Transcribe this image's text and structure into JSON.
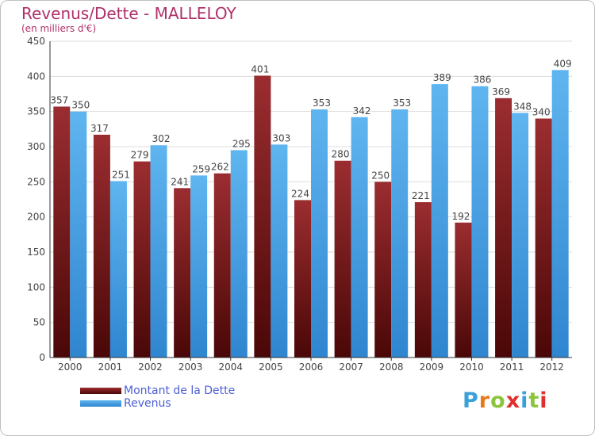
{
  "title": "Revenus/Dette - MALLELOY",
  "subtitle": "(en milliers d'€)",
  "logo_text": "Proxiti",
  "chart_data": {
    "type": "bar",
    "categories": [
      "2000",
      "2001",
      "2002",
      "2003",
      "2004",
      "2005",
      "2006",
      "2007",
      "2008",
      "2009",
      "2010",
      "2011",
      "2012"
    ],
    "series": [
      {
        "name": "Montant de la Dette",
        "color": "#6e1a1d",
        "values": [
          357,
          317,
          279,
          241,
          262,
          401,
          224,
          280,
          250,
          221,
          192,
          369,
          340
        ]
      },
      {
        "name": "Revenus",
        "color": "#3a9ae0",
        "values": [
          350,
          251,
          302,
          259,
          295,
          303,
          353,
          342,
          353,
          389,
          386,
          348,
          409
        ]
      }
    ],
    "y_ticks": [
      0,
      50,
      100,
      150,
      200,
      250,
      300,
      350,
      400,
      450
    ],
    "ylim": [
      0,
      450
    ],
    "grid": true,
    "legend_position": "bottom-left"
  },
  "colors": {
    "title": "#b0306a",
    "grid": "#dddddd",
    "debt_light": "#9b2d30",
    "debt_dark": "#4a0707",
    "revenue_light": "#5fb5ef",
    "revenue_dark": "#2f86d0"
  }
}
